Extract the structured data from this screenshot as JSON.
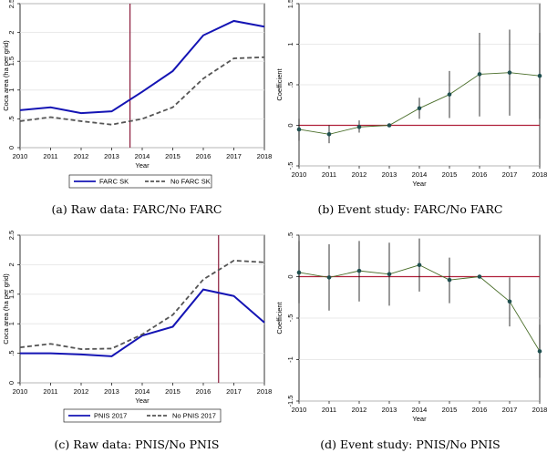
{
  "chart_data": [
    {
      "id": "a",
      "type": "line",
      "caption": "(a) Raw data: FARC/No FARC",
      "xlabel": "Year",
      "ylabel": "Coca area (ha per grid)",
      "x": [
        2010,
        2011,
        2012,
        2013,
        2014,
        2015,
        2016,
        2017,
        2018
      ],
      "xlim": [
        2010,
        2018
      ],
      "ylim": [
        0,
        2.5
      ],
      "yticks": [
        0,
        0.5,
        1,
        1.5,
        2,
        2.5
      ],
      "ytick_labels": [
        "0",
        ".5",
        "1",
        "1.5",
        "2",
        "2.5"
      ],
      "grid": true,
      "vline": 2013.6,
      "vline_color": "#8b1a3a",
      "series": [
        {
          "name": "FARC SK",
          "style": "solid",
          "color": "#1414b4",
          "values": [
            0.65,
            0.7,
            0.6,
            0.63,
            0.97,
            1.33,
            1.95,
            2.2,
            2.1
          ]
        },
        {
          "name": "No FARC SK",
          "style": "dashed",
          "color": "#555555",
          "values": [
            0.46,
            0.53,
            0.46,
            0.4,
            0.5,
            0.7,
            1.2,
            1.55,
            1.57
          ]
        }
      ],
      "legend": "bottom"
    },
    {
      "id": "b",
      "type": "line",
      "caption": "(b) Event study: FARC/No FARC",
      "xlabel": "Year",
      "ylabel": "Coefficient",
      "x": [
        2010,
        2011,
        2012,
        2013,
        2014,
        2015,
        2016,
        2017,
        2018
      ],
      "xlim": [
        2010,
        2018
      ],
      "ylim": [
        -0.5,
        1.5
      ],
      "yticks": [
        -0.5,
        0,
        0.5,
        1,
        1.5
      ],
      "ytick_labels": [
        "-.5",
        "0",
        ".5",
        "1",
        "1.5"
      ],
      "grid": true,
      "hline": 0,
      "hline_color": "#b0203a",
      "series": [
        {
          "style": "solid",
          "color": "#4a6e2a",
          "marker_color": "#1f4f4f",
          "values": [
            -0.05,
            -0.11,
            -0.02,
            0.0,
            0.21,
            0.38,
            0.63,
            0.65,
            0.61
          ],
          "ci_low": [
            -0.19,
            -0.22,
            -0.09,
            0.0,
            0.08,
            0.09,
            0.11,
            0.12,
            0.08
          ],
          "ci_high": [
            0.08,
            0.0,
            0.06,
            0.0,
            0.34,
            0.67,
            1.14,
            1.18,
            1.14
          ]
        }
      ]
    },
    {
      "id": "c",
      "type": "line",
      "caption": "(c) Raw data: PNIS/No PNIS",
      "xlabel": "Year",
      "ylabel": "Coca area (ha per grid)",
      "x": [
        2010,
        2011,
        2012,
        2013,
        2014,
        2015,
        2016,
        2017,
        2018
      ],
      "xlim": [
        2010,
        2018
      ],
      "ylim": [
        0,
        2.5
      ],
      "yticks": [
        0,
        0.5,
        1,
        1.5,
        2,
        2.5
      ],
      "ytick_labels": [
        "0",
        ".5",
        "1",
        "1.5",
        "2",
        "2.5"
      ],
      "grid": true,
      "vline": 2016.5,
      "vline_color": "#8b1a3a",
      "series": [
        {
          "name": "PNIS 2017",
          "style": "solid",
          "color": "#1414b4",
          "values": [
            0.5,
            0.5,
            0.48,
            0.45,
            0.8,
            0.95,
            1.58,
            1.47,
            1.02
          ]
        },
        {
          "name": "No PNIS 2017",
          "style": "dashed",
          "color": "#555555",
          "values": [
            0.6,
            0.66,
            0.57,
            0.58,
            0.82,
            1.15,
            1.75,
            2.07,
            2.04
          ]
        }
      ],
      "legend": "bottom"
    },
    {
      "id": "d",
      "type": "line",
      "caption": "(d) Event study: PNIS/No PNIS",
      "xlabel": "Year",
      "ylabel": "Coefficient",
      "x": [
        2010,
        2011,
        2012,
        2013,
        2014,
        2015,
        2016,
        2017,
        2018
      ],
      "xlim": [
        2010,
        2018
      ],
      "ylim": [
        -1.5,
        0.5
      ],
      "yticks": [
        -1.5,
        -1,
        -0.5,
        0,
        0.5
      ],
      "ytick_labels": [
        "-1.5",
        "-1",
        "-.5",
        "0",
        ".5"
      ],
      "grid": true,
      "hline": 0,
      "hline_color": "#b0203a",
      "series": [
        {
          "style": "solid",
          "color": "#4a6e2a",
          "marker_color": "#1f4f4f",
          "values": [
            0.05,
            -0.01,
            0.07,
            0.03,
            0.14,
            -0.04,
            0.0,
            -0.3,
            -0.9
          ],
          "ci_low": [
            -0.32,
            -0.41,
            -0.3,
            -0.35,
            -0.18,
            -0.32,
            0.0,
            -0.6,
            -1.22
          ],
          "ci_high": [
            0.43,
            0.39,
            0.43,
            0.41,
            0.46,
            0.23,
            0.0,
            -0.01,
            -0.58
          ]
        }
      ]
    }
  ]
}
